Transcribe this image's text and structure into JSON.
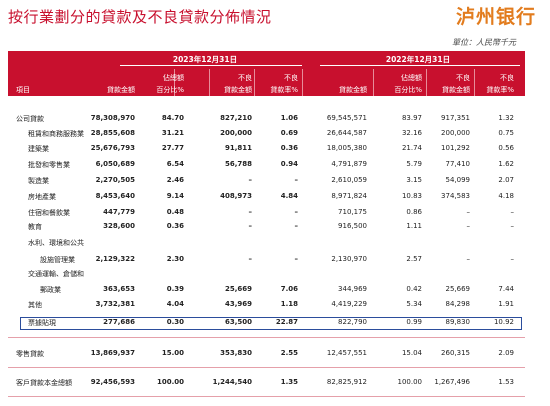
{
  "title": "按行業劃分的貸款及不良貸款分佈情況",
  "logo": "泸州银行",
  "unit": "單位：人民幣千元",
  "header": {
    "year_2023": "2023年12月31日",
    "year_2022": "2022年12月31日",
    "item": "項目",
    "loan_amount": "貸款金額",
    "pct_top": "佔總額",
    "pct_bottom": "百分比%",
    "npl_top": "不良",
    "npl_bottom": "貸款金額",
    "rate_top": "不良",
    "rate_bottom": "貸款率%"
  },
  "rows": [
    {
      "label": "公司貸款",
      "v": [
        "78,308,970",
        "84.70",
        "827,210",
        "1.06",
        "69,545,571",
        "83.97",
        "917,351",
        "1.32"
      ]
    },
    {
      "label": "租賃和商務服務業",
      "v": [
        "28,855,608",
        "31.21",
        "200,000",
        "0.69",
        "26,644,587",
        "32.16",
        "200,000",
        "0.75"
      ]
    },
    {
      "label": "建築業",
      "v": [
        "25,676,793",
        "27.77",
        "91,811",
        "0.36",
        "18,005,380",
        "21.74",
        "101,292",
        "0.56"
      ]
    },
    {
      "label": "批發和零售業",
      "v": [
        "6,050,689",
        "6.54",
        "56,788",
        "0.94",
        "4,791,879",
        "5.79",
        "77,410",
        "1.62"
      ]
    },
    {
      "label": "製造業",
      "v": [
        "2,270,505",
        "2.46",
        "–",
        "–",
        "2,610,059",
        "3.15",
        "54,099",
        "2.07"
      ]
    },
    {
      "label": "房地產業",
      "v": [
        "8,453,640",
        "9.14",
        "408,973",
        "4.84",
        "8,971,824",
        "10.83",
        "374,583",
        "4.18"
      ]
    },
    {
      "label": "住宿和餐飲業",
      "v": [
        "447,779",
        "0.48",
        "–",
        "–",
        "710,175",
        "0.86",
        "–",
        "–"
      ]
    },
    {
      "label": "教育",
      "v": [
        "328,600",
        "0.36",
        "–",
        "–",
        "916,500",
        "1.11",
        "–",
        "–"
      ]
    },
    {
      "label": "水利、環境和公共",
      "v": [
        "",
        "",
        "",
        "",
        "",
        "",
        "",
        ""
      ]
    },
    {
      "label": "設施管理業",
      "v": [
        "2,129,322",
        "2.30",
        "–",
        "–",
        "2,130,970",
        "2.57",
        "–",
        "–"
      ]
    },
    {
      "label": "交通運輸、倉儲和",
      "v": [
        "",
        "",
        "",
        "",
        "",
        "",
        "",
        ""
      ]
    },
    {
      "label": "郵政業",
      "v": [
        "363,653",
        "0.39",
        "25,669",
        "7.06",
        "344,969",
        "0.42",
        "25,669",
        "7.44"
      ]
    },
    {
      "label": "其他",
      "v": [
        "3,732,381",
        "4.04",
        "43,969",
        "1.18",
        "4,419,229",
        "5.34",
        "84,298",
        "1.91"
      ]
    },
    {
      "label": "票據貼現",
      "v": [
        "277,686",
        "0.30",
        "63,500",
        "22.87",
        "822,790",
        "0.99",
        "89,830",
        "10.92"
      ]
    },
    {
      "label": "零售貸款",
      "v": [
        "13,869,937",
        "15.00",
        "353,830",
        "2.55",
        "12,457,551",
        "15.04",
        "260,315",
        "2.09"
      ]
    },
    {
      "label": "客戶貸款本金總額",
      "v": [
        "92,456,593",
        "100.00",
        "1,244,540",
        "1.35",
        "82,825,912",
        "100.00",
        "1,267,496",
        "1.53"
      ]
    }
  ]
}
